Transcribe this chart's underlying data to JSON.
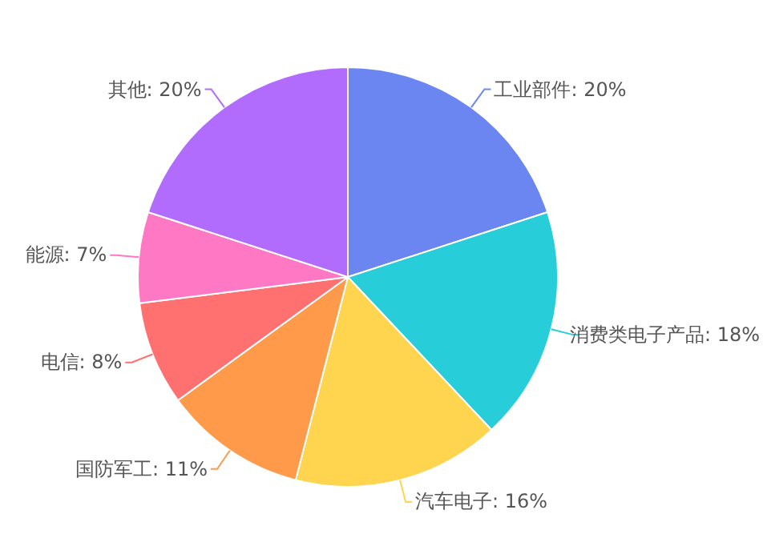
{
  "chart_data": {
    "type": "pie",
    "categories": [
      "工业部件",
      "消费类电子产品",
      "汽车电子",
      "国防军工",
      "电信",
      "能源",
      "其他"
    ],
    "values": [
      20,
      18,
      16,
      11,
      8,
      7,
      20
    ],
    "value_labels": [
      "20%",
      "18%",
      "16%",
      "11%",
      "8%",
      "7%",
      "20%"
    ],
    "colors": [
      "#6b86f1",
      "#27ced9",
      "#ffd44f",
      "#ff9a4a",
      "#ff7070",
      "#fe78c4",
      "#b16cfe"
    ],
    "legend": false
  }
}
